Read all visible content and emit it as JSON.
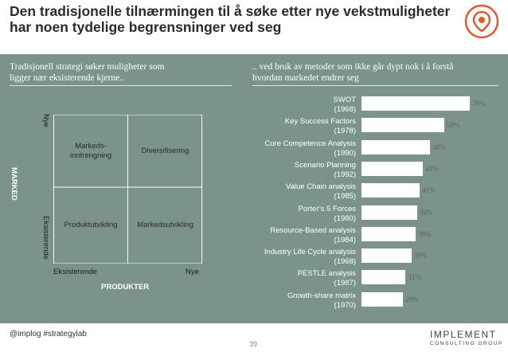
{
  "slide": {
    "title_line1": "Den tradisjonelle tilnærmingen til å søke etter nye vekstmuligheter",
    "title_line2": "har noen tydelige begrensninger ved seg",
    "footer": "@implog #strategylab",
    "page_number": "39",
    "brand_name": "IMPLEMENT",
    "brand_tagline": "CONSULTING GROUP",
    "accent_color": "#e05a2b",
    "panel_color": "#7c938c"
  },
  "left": {
    "subtitle_line1": "Tradisjonell strategi søker muligheter som",
    "subtitle_line2": "ligger nær eksisterende kjerne..",
    "matrix": {
      "y_axis_title": "MARKED",
      "y_top": "Nye",
      "y_bottom": "Eksisterende",
      "x_axis_title": "PRODUKTER",
      "x_left": "Eksisterende",
      "x_right": "Nye",
      "cells": {
        "top_left_line1": "Markeds-",
        "top_left_line2": "inntrengning",
        "top_right": "Diversifisering",
        "bottom_left": "Produktutvikling",
        "bottom_right": "Markedsutvikling"
      }
    }
  },
  "right": {
    "subtitle_line1": ".. ved bruk av metoder som ikke går dypt nok i å forstå",
    "subtitle_line2": "hvordan markedet endrer seg"
  },
  "chart_data": {
    "type": "bar",
    "orientation": "horizontal",
    "title": "",
    "categories": [
      "SWOT (1968)",
      "Key Success Factors (1978)",
      "Core Competence Analysis (1990)",
      "Scenario Planning (1992)",
      "Value Chain analysis (1985)",
      "Porter’s 5 Forces (1980)",
      "Resource-Based analysis (1984)",
      "Industry Life Cycle analysis (1968)",
      "PESTLE analysis (1987)",
      "Growth-share matrix (1970)"
    ],
    "bars": [
      {
        "name": "SWOT",
        "year": "(1968)",
        "value": 76,
        "label": "76%"
      },
      {
        "name": "Key Success Factors",
        "year": "(1978)",
        "value": 58,
        "label": "58%"
      },
      {
        "name": "Core Competence Analysis",
        "year": "(1990)",
        "value": 48,
        "label": "48%"
      },
      {
        "name": "Scenario Planning",
        "year": "(1992)",
        "value": 43,
        "label": "43%"
      },
      {
        "name": "Value Chain analysis",
        "year": "(1985)",
        "value": 41,
        "label": "41%"
      },
      {
        "name": "Porter’s 5 Forces",
        "year": "(1980)",
        "value": 39,
        "label": "39%"
      },
      {
        "name": "Resource-Based analysis",
        "year": "(1984)",
        "value": 38,
        "label": "38%"
      },
      {
        "name": "Industry Life Cycle analysis",
        "year": "(1968)",
        "value": 35,
        "label": "35%"
      },
      {
        "name": "PESTLE analysis",
        "year": "(1987)",
        "value": 31,
        "label": "31%"
      },
      {
        "name": "Growth-share matrix",
        "year": "(1970)",
        "value": 29,
        "label": "29%"
      }
    ],
    "xlim": [
      0,
      100
    ],
    "xlabel": "",
    "ylabel": "",
    "bar_color": "#ffffff"
  }
}
